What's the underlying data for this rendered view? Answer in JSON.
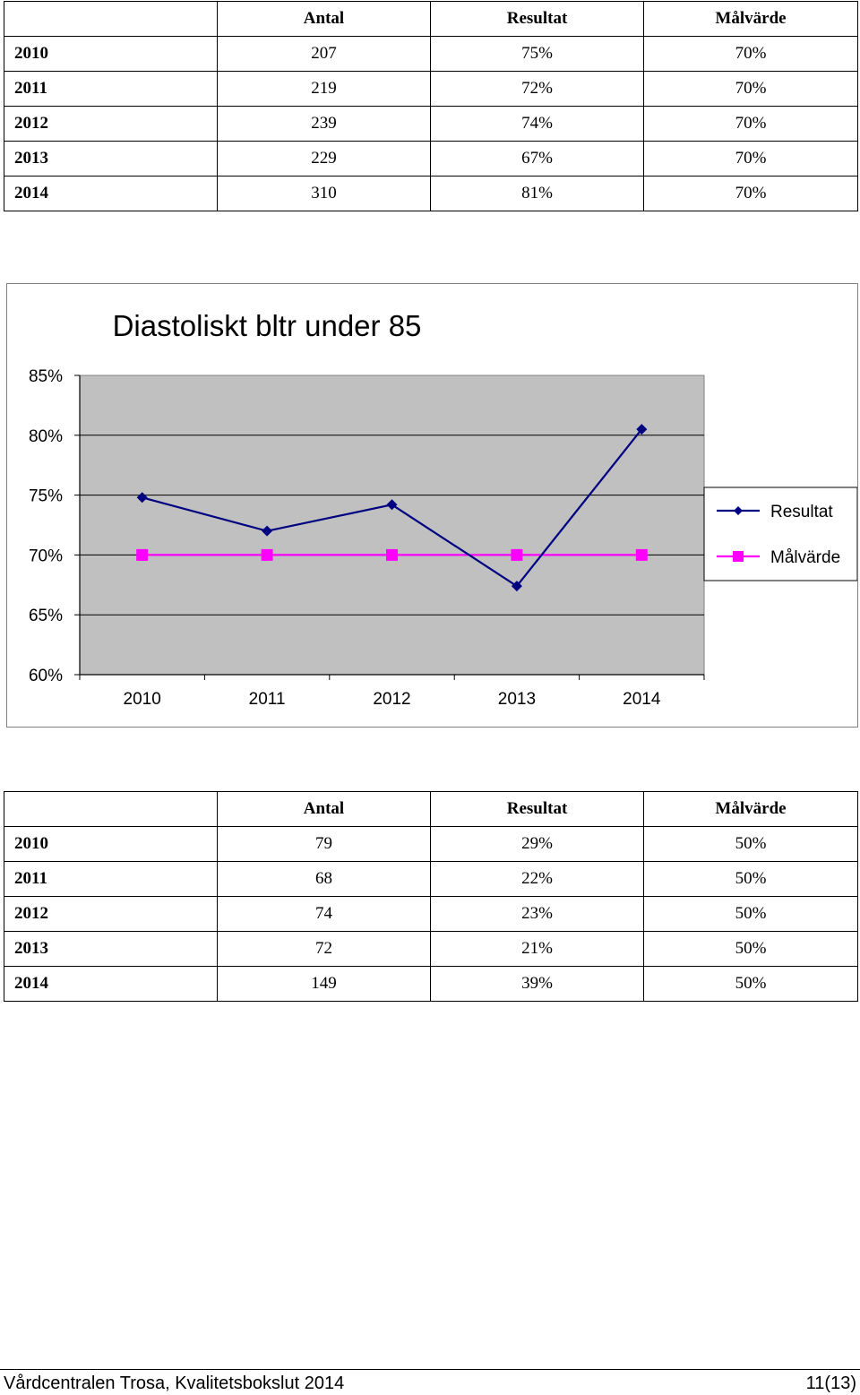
{
  "table1": {
    "headers": [
      "",
      "Antal",
      "Resultat",
      "Målvärde"
    ],
    "rows": [
      [
        "2010",
        "207",
        "75%",
        "70%"
      ],
      [
        "2011",
        "219",
        "72%",
        "70%"
      ],
      [
        "2012",
        "239",
        "74%",
        "70%"
      ],
      [
        "2013",
        "229",
        "67%",
        "70%"
      ],
      [
        "2014",
        "310",
        "81%",
        "70%"
      ]
    ]
  },
  "chart_data": {
    "type": "line",
    "title": "Diastoliskt bltr under 85",
    "categories": [
      "2010",
      "2011",
      "2012",
      "2013",
      "2014"
    ],
    "series": [
      {
        "name": "Resultat",
        "values": [
          0.748,
          0.72,
          0.742,
          0.674,
          0.805
        ],
        "color": "#000080",
        "marker": "diamond"
      },
      {
        "name": "Målvärde",
        "values": [
          0.7,
          0.7,
          0.7,
          0.7,
          0.7
        ],
        "color": "#ff00ff",
        "marker": "square"
      }
    ],
    "ylim": [
      0.6,
      0.85
    ],
    "yticks": [
      "60%",
      "65%",
      "70%",
      "75%",
      "80%",
      "85%"
    ],
    "grid": true,
    "legend": "right",
    "plot_background": "#c0c0c0"
  },
  "table2": {
    "headers": [
      "",
      "Antal",
      "Resultat",
      "Målvärde"
    ],
    "rows": [
      [
        "2010",
        "79",
        "29%",
        "50%"
      ],
      [
        "2011",
        "68",
        "22%",
        "50%"
      ],
      [
        "2012",
        "74",
        "23%",
        "50%"
      ],
      [
        "2013",
        "72",
        "21%",
        "50%"
      ],
      [
        "2014",
        "149",
        "39%",
        "50%"
      ]
    ]
  },
  "footer": {
    "left": "Vårdcentralen Trosa, Kvalitetsbokslut 2014",
    "right": "11(13)"
  }
}
